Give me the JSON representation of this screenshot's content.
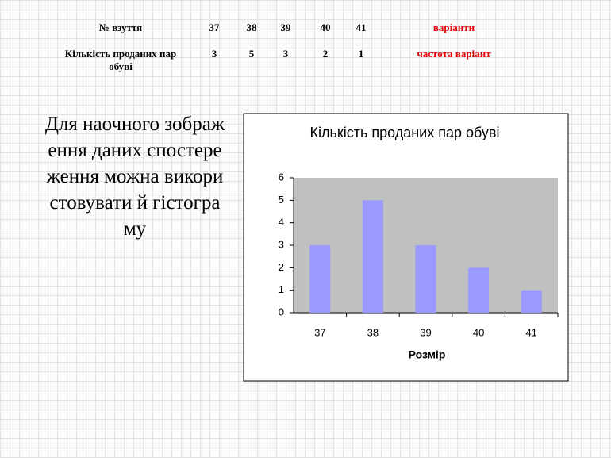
{
  "table": {
    "rows": [
      [
        "№ взуття",
        37,
        38,
        39,
        40,
        41,
        "варіанти"
      ],
      [
        "Кількість  проданих пар обуві",
        3,
        5,
        3,
        2,
        1,
        "частота варіант"
      ]
    ]
  },
  "body_text": "Для наочного зображення даних спостереження можна використовувати й  гістограму",
  "chart_data": {
    "type": "bar",
    "title": "Кількість  проданих пар обуві",
    "categories": [
      "37",
      "38",
      "39",
      "40",
      "41"
    ],
    "values": [
      3,
      5,
      3,
      2,
      1
    ],
    "color": "#9999ff",
    "xlabel": "Розмір",
    "ylim": [
      0,
      6
    ],
    "yticks": [
      0,
      1,
      2,
      3,
      4,
      5,
      6
    ],
    "plot_background": "#c0c0c0"
  }
}
